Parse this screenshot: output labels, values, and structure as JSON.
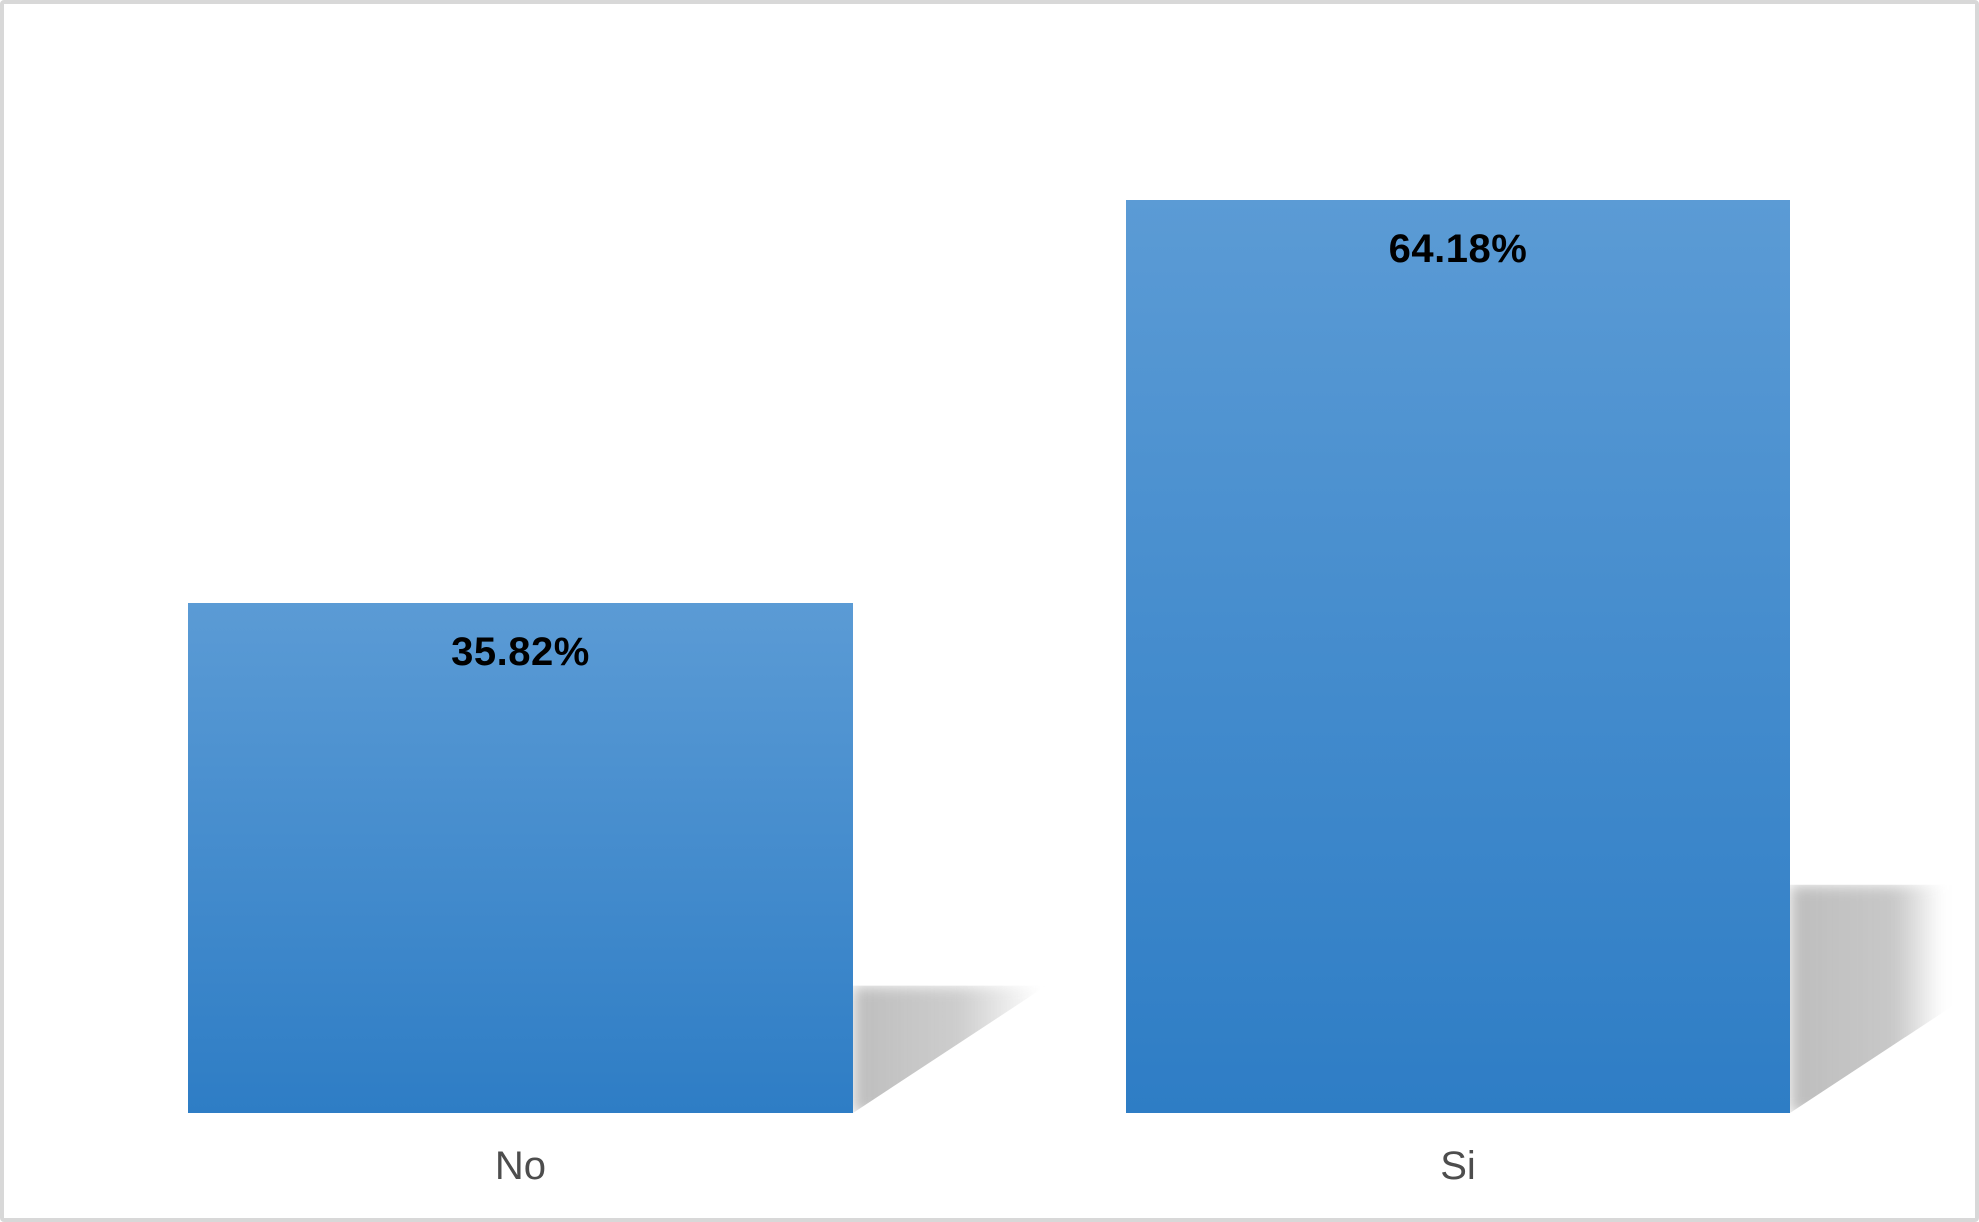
{
  "chart_data": {
    "type": "bar",
    "categories": [
      "No",
      "Si"
    ],
    "values": [
      35.82,
      64.18
    ],
    "data_labels": [
      "35.82%",
      "64.18%"
    ],
    "series_name": "",
    "xlabel": "",
    "ylabel": "",
    "ylim": [
      0,
      70
    ],
    "grid": false,
    "legend": false,
    "axis_visible": false,
    "data_label_position": "inside-end",
    "colors": {
      "bar_gradient_top": "#5B9BD5",
      "bar_gradient_bottom": "#2E7DC5",
      "data_label": "#000000",
      "category_label": "#4D4D4D",
      "background": "#FFFFFF",
      "frame_border": "#D8D8D8",
      "shadow": "rgba(110,110,110,0.45)"
    }
  }
}
